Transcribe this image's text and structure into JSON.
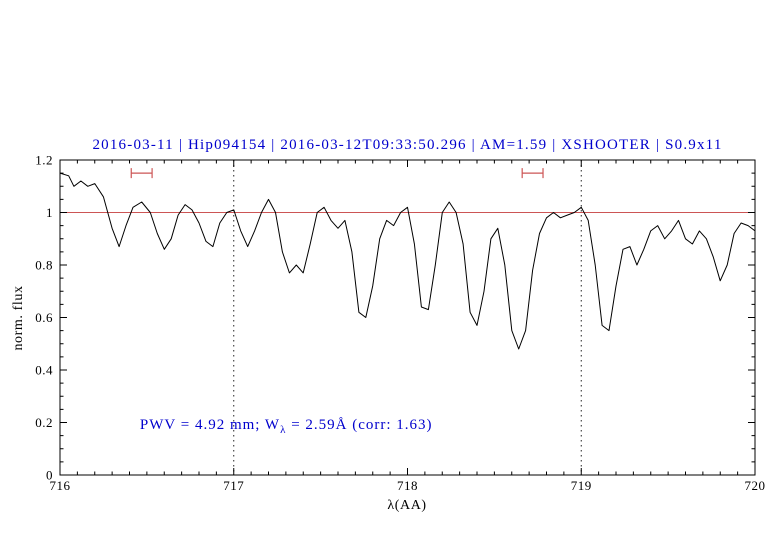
{
  "colors": {
    "accent_blue": "#0000cd",
    "line_red": "#cc5555",
    "spectrum_black": "#000000",
    "background": "#ffffff"
  },
  "chart_data": {
    "type": "line",
    "title": "2016-03-11 | Hip094154 | 2016-03-12T09:33:50.296 | AM=1.59 | XSHOOTER | S0.9x11",
    "xlabel": "λ(AA)",
    "ylabel": "norm. flux",
    "xlim": [
      716,
      720
    ],
    "ylim": [
      0,
      1.2
    ],
    "xticks": [
      716,
      717,
      718,
      719,
      720
    ],
    "xtick_labels": [
      "716",
      "717",
      "718",
      "719",
      "720"
    ],
    "yticks": [
      0,
      0.2,
      0.4,
      0.6,
      0.8,
      1,
      1.2
    ],
    "ytick_labels": [
      "0",
      "0.2",
      "0.4",
      "0.6",
      "0.8",
      "1",
      "1.2"
    ],
    "x_minor_step": 0.1,
    "y_minor_step": 0.05,
    "grid": false,
    "legend": null,
    "reference_lines": [
      {
        "type": "horizontal",
        "y": 1.0,
        "color": "#cc5555",
        "style": "solid",
        "name": "continuum"
      },
      {
        "type": "vertical",
        "x": 717.0,
        "color": "#222222",
        "style": "dotted",
        "name": "bound-left"
      },
      {
        "type": "vertical",
        "x": 719.0,
        "color": "#222222",
        "style": "dotted",
        "name": "bound-right"
      }
    ],
    "range_markers": [
      {
        "x_start": 716.41,
        "x_end": 716.53,
        "y": 1.15,
        "color": "#cc5555"
      },
      {
        "x_start": 718.66,
        "x_end": 718.78,
        "y": 1.15,
        "color": "#cc5555"
      }
    ],
    "annotation": {
      "text_prefix": "PWV = 4.92 mm; W",
      "text_subscript": "λ",
      "text_suffix": " = 2.59Å (corr: 1.63)",
      "x": 716.46,
      "y": 0.175,
      "color": "#0000cd"
    },
    "series": [
      {
        "name": "telluric spectrum",
        "color": "#000000",
        "x": [
          716.0,
          716.05,
          716.08,
          716.12,
          716.16,
          716.2,
          716.25,
          716.3,
          716.34,
          716.38,
          716.42,
          716.47,
          716.52,
          716.56,
          716.6,
          716.64,
          716.68,
          716.72,
          716.76,
          716.8,
          716.84,
          716.88,
          716.92,
          716.96,
          717.0,
          717.04,
          717.08,
          717.12,
          717.16,
          717.2,
          717.24,
          717.28,
          717.32,
          717.36,
          717.4,
          717.44,
          717.48,
          717.52,
          717.56,
          717.6,
          717.64,
          717.68,
          717.72,
          717.76,
          717.8,
          717.84,
          717.88,
          717.92,
          717.96,
          718.0,
          718.04,
          718.08,
          718.12,
          718.16,
          718.2,
          718.24,
          718.28,
          718.32,
          718.36,
          718.4,
          718.44,
          718.48,
          718.52,
          718.56,
          718.6,
          718.64,
          718.68,
          718.72,
          718.76,
          718.8,
          718.84,
          718.88,
          718.92,
          718.96,
          719.0,
          719.04,
          719.08,
          719.12,
          719.16,
          719.2,
          719.24,
          719.28,
          719.32,
          719.36,
          719.4,
          719.44,
          719.48,
          719.52,
          719.56,
          719.6,
          719.64,
          719.68,
          719.72,
          719.76,
          719.8,
          719.84,
          719.88,
          719.92,
          719.96,
          720.0
        ],
        "y": [
          1.15,
          1.14,
          1.1,
          1.12,
          1.1,
          1.11,
          1.06,
          0.94,
          0.87,
          0.95,
          1.02,
          1.04,
          1.0,
          0.92,
          0.86,
          0.9,
          0.99,
          1.03,
          1.01,
          0.96,
          0.89,
          0.87,
          0.96,
          1.0,
          1.01,
          0.93,
          0.87,
          0.93,
          1.0,
          1.05,
          1.0,
          0.85,
          0.77,
          0.8,
          0.77,
          0.88,
          1.0,
          1.02,
          0.97,
          0.94,
          0.97,
          0.85,
          0.62,
          0.6,
          0.72,
          0.9,
          0.97,
          0.95,
          1.0,
          1.02,
          0.88,
          0.64,
          0.63,
          0.8,
          1.0,
          1.04,
          1.0,
          0.88,
          0.62,
          0.57,
          0.7,
          0.9,
          0.94,
          0.8,
          0.55,
          0.48,
          0.55,
          0.78,
          0.92,
          0.98,
          1.0,
          0.98,
          0.99,
          1.0,
          1.02,
          0.97,
          0.8,
          0.57,
          0.55,
          0.72,
          0.86,
          0.87,
          0.8,
          0.86,
          0.93,
          0.95,
          0.9,
          0.93,
          0.97,
          0.9,
          0.88,
          0.93,
          0.9,
          0.83,
          0.74,
          0.8,
          0.92,
          0.96,
          0.95,
          0.93
        ]
      }
    ]
  }
}
